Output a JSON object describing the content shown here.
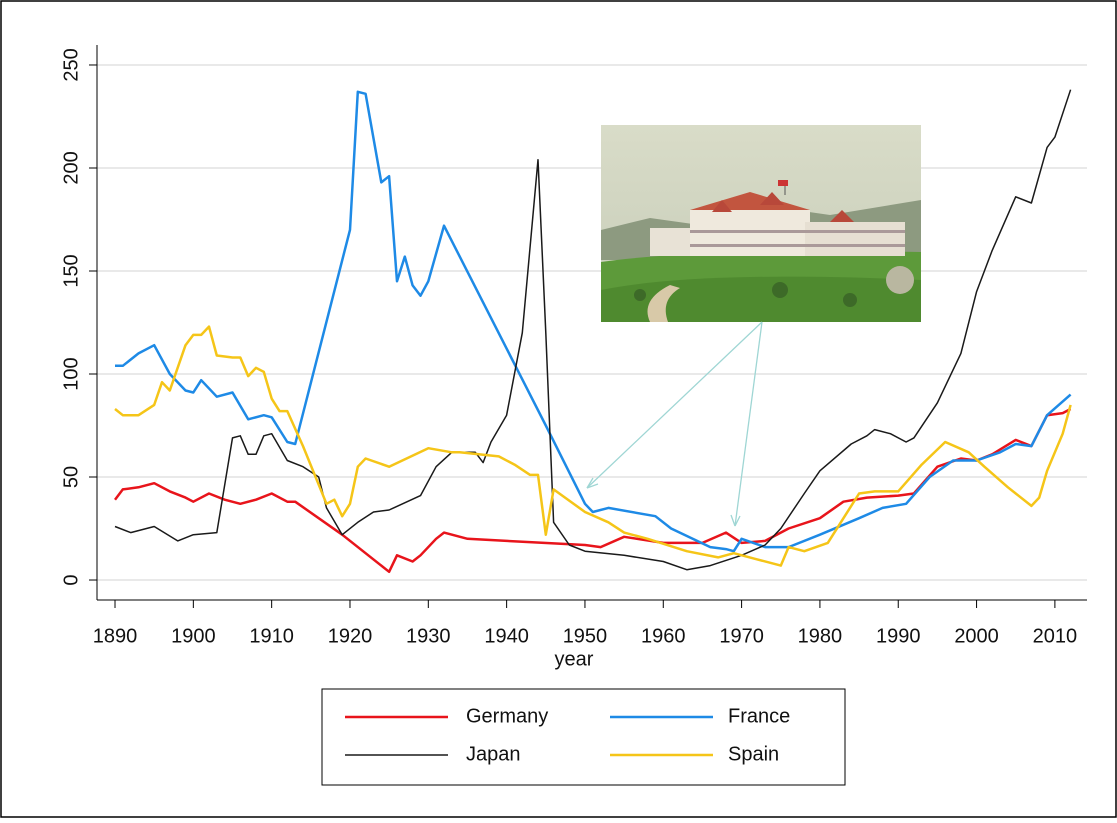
{
  "chart_data": {
    "type": "line",
    "x_label": "year",
    "xlim": [
      1887.7,
      2014.1
    ],
    "xticks": [
      1890,
      1900,
      1910,
      1920,
      1930,
      1940,
      1950,
      1960,
      1970,
      1980,
      1990,
      2000,
      2010
    ],
    "ylim": [
      -9.7,
      259.7
    ],
    "yticks": [
      0,
      50,
      100,
      150,
      200,
      250
    ],
    "grid": true,
    "series": [
      {
        "name": "Germany",
        "color": "#e8141b",
        "width": 2.5,
        "x": [
          1890,
          1891,
          1893,
          1895,
          1897,
          1899,
          1900,
          1902,
          1904,
          1906,
          1908,
          1910,
          1912,
          1913,
          1919,
          1925,
          1926,
          1928,
          1929,
          1931,
          1932,
          1935,
          1940,
          1950,
          1952,
          1955,
          1960,
          1965,
          1968,
          1970,
          1973,
          1976,
          1980,
          1983,
          1986,
          1990,
          1992,
          1995,
          1998,
          2000,
          2002,
          2005,
          2007,
          2009,
          2011,
          2012
        ],
        "values": [
          39,
          44,
          45,
          47,
          43,
          40,
          38,
          42,
          39,
          37,
          39,
          42,
          38,
          38,
          22,
          4,
          12,
          9,
          12,
          20,
          23,
          20,
          19,
          17,
          16,
          21,
          18,
          18,
          23,
          18,
          19,
          25,
          30,
          38,
          40,
          41,
          42,
          55,
          59,
          58,
          61,
          68,
          65,
          80,
          81,
          83
        ]
      },
      {
        "name": "France",
        "color": "#1e8ae6",
        "width": 2.5,
        "x": [
          1890,
          1891,
          1893,
          1895,
          1897,
          1899,
          1900,
          1901,
          1903,
          1905,
          1907,
          1909,
          1910,
          1912,
          1913,
          1920,
          1921,
          1922,
          1924,
          1925,
          1926,
          1927,
          1928,
          1929,
          1930,
          1932,
          1945,
          1950,
          1951,
          1953,
          1959,
          1961,
          1966,
          1968,
          1969,
          1970,
          1973,
          1976,
          1980,
          1985,
          1988,
          1991,
          1994,
          1997,
          2000,
          2003,
          2005,
          2007,
          2009,
          2012
        ],
        "values": [
          104,
          104,
          110,
          114,
          100,
          92,
          91,
          97,
          89,
          91,
          78,
          80,
          79,
          67,
          66,
          170,
          237,
          236,
          193,
          196,
          145,
          157,
          143,
          138,
          145,
          172,
          75,
          37,
          33,
          35,
          31,
          25,
          16,
          15,
          14,
          20,
          16,
          16,
          22,
          30,
          35,
          37,
          50,
          58,
          58,
          62,
          66,
          65,
          80,
          90
        ]
      },
      {
        "name": "Japan",
        "color": "#1a1a1a",
        "width": 1.5,
        "x": [
          1890,
          1892,
          1895,
          1898,
          1900,
          1903,
          1905,
          1906,
          1907,
          1908,
          1909,
          1910,
          1912,
          1914,
          1916,
          1917,
          1919,
          1921,
          1923,
          1925,
          1929,
          1931,
          1933,
          1936,
          1937,
          1938,
          1940,
          1942,
          1944,
          1945,
          1946,
          1948,
          1950,
          1955,
          1960,
          1963,
          1966,
          1970,
          1973,
          1975,
          1978,
          1980,
          1984,
          1986,
          1987,
          1989,
          1991,
          1992,
          1995,
          1998,
          2000,
          2002,
          2005,
          2007,
          2009,
          2010,
          2012
        ],
        "values": [
          26,
          23,
          26,
          19,
          22,
          23,
          69,
          70,
          61,
          61,
          70,
          71,
          58,
          55,
          50,
          35,
          22,
          28,
          33,
          34,
          41,
          55,
          62,
          62,
          57,
          67,
          80,
          120,
          204,
          120,
          28,
          17,
          14,
          12,
          9,
          5,
          7,
          12,
          17,
          25,
          42,
          53,
          66,
          70,
          73,
          71,
          67,
          69,
          86,
          110,
          140,
          160,
          186,
          183,
          210,
          215,
          238
        ]
      },
      {
        "name": "Spain",
        "color": "#f5c518",
        "width": 2.5,
        "x": [
          1890,
          1891,
          1893,
          1895,
          1896,
          1897,
          1899,
          1900,
          1901,
          1902,
          1903,
          1905,
          1906,
          1907,
          1908,
          1909,
          1910,
          1911,
          1912,
          1914,
          1917,
          1918,
          1919,
          1920,
          1921,
          1922,
          1925,
          1930,
          1933,
          1934,
          1939,
          1941,
          1943,
          1944,
          1945,
          1946,
          1950,
          1953,
          1955,
          1958,
          1963,
          1967,
          1969,
          1972,
          1975,
          1976,
          1978,
          1981,
          1985,
          1987,
          1990,
          1993,
          1996,
          1999,
          2001,
          2004,
          2007,
          2008,
          2009,
          2011,
          2012
        ],
        "values": [
          83,
          80,
          80,
          85,
          96,
          92,
          114,
          119,
          119,
          123,
          109,
          108,
          108,
          99,
          103,
          101,
          88,
          82,
          82,
          65,
          37,
          39,
          31,
          37,
          55,
          59,
          55,
          64,
          62,
          62,
          60,
          56,
          51,
          51,
          22,
          44,
          33,
          28,
          23,
          20,
          14,
          11,
          13,
          10,
          7,
          16,
          14,
          18,
          42,
          43,
          43,
          56,
          67,
          62,
          55,
          45,
          36,
          40,
          53,
          71,
          85
        ]
      }
    ]
  }
}
